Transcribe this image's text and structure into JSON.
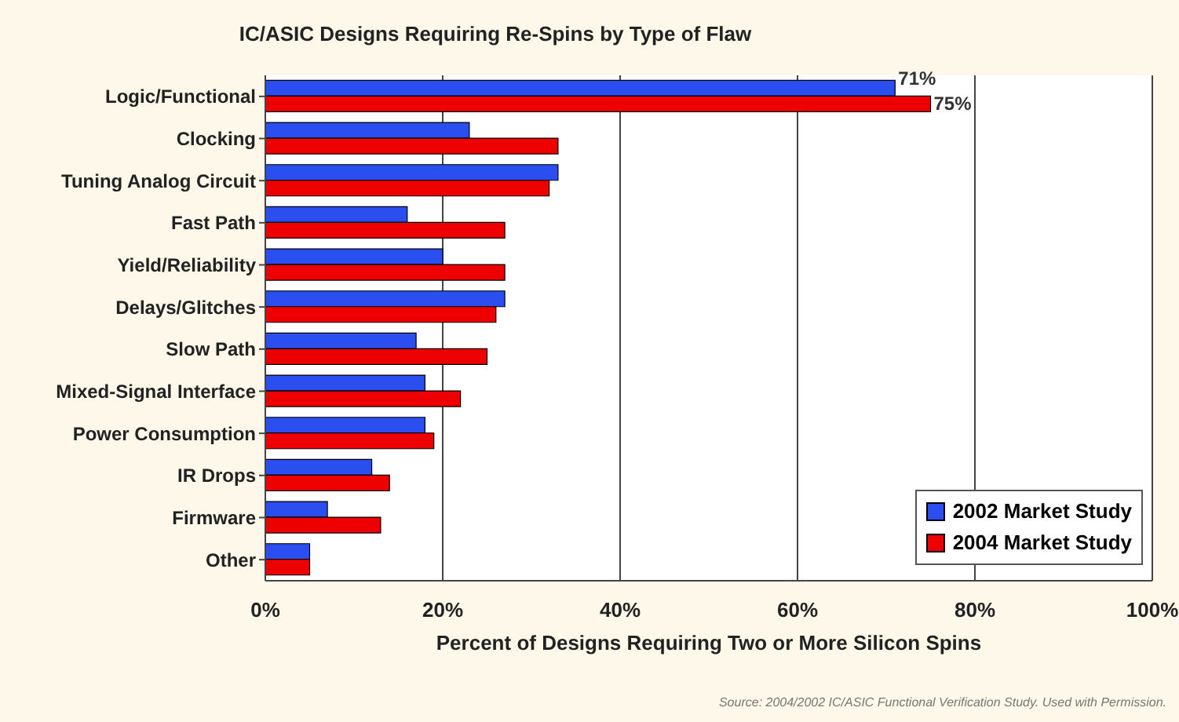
{
  "chart_data": {
    "type": "bar",
    "orientation": "horizontal",
    "title": "IC/ASIC Designs Requiring Re-Spins by Type of Flaw",
    "xlabel": "Percent of Designs Requiring Two or More Silicon Spins",
    "categories": [
      "Logic/Functional",
      "Clocking",
      "Tuning Analog Circuit",
      "Fast Path",
      "Yield/Reliability",
      "Delays/Glitches",
      "Slow Path",
      "Mixed-Signal Interface",
      "Power Consumption",
      "IR Drops",
      "Firmware",
      "Other"
    ],
    "series": [
      {
        "name": "2002 Market Study",
        "color": "#2b4ef0",
        "values": [
          71,
          23,
          33,
          16,
          20,
          27,
          17,
          18,
          18,
          12,
          7,
          5
        ],
        "value_labels": [
          "71%",
          null,
          null,
          null,
          null,
          null,
          null,
          null,
          null,
          null,
          null,
          null
        ]
      },
      {
        "name": "2004 Market Study",
        "color": "#ee0000",
        "values": [
          75,
          33,
          32,
          27,
          27,
          26,
          25,
          22,
          19,
          14,
          13,
          5
        ],
        "value_labels": [
          "75%",
          null,
          null,
          null,
          null,
          null,
          null,
          null,
          null,
          null,
          null,
          null
        ]
      }
    ],
    "xlim": [
      0,
      100
    ],
    "xticks": [
      {
        "value": 0,
        "label": "0%"
      },
      {
        "value": 20,
        "label": "20%"
      },
      {
        "value": 40,
        "label": "40%"
      },
      {
        "value": 60,
        "label": "60%"
      },
      {
        "value": 80,
        "label": "80%"
      },
      {
        "value": 100,
        "label": "100%"
      }
    ],
    "grid": "x",
    "legend": "bottom right",
    "annotations": [
      "Source: 2004/2002 IC/ASIC Functional Verification Study. Used with Permission."
    ]
  }
}
